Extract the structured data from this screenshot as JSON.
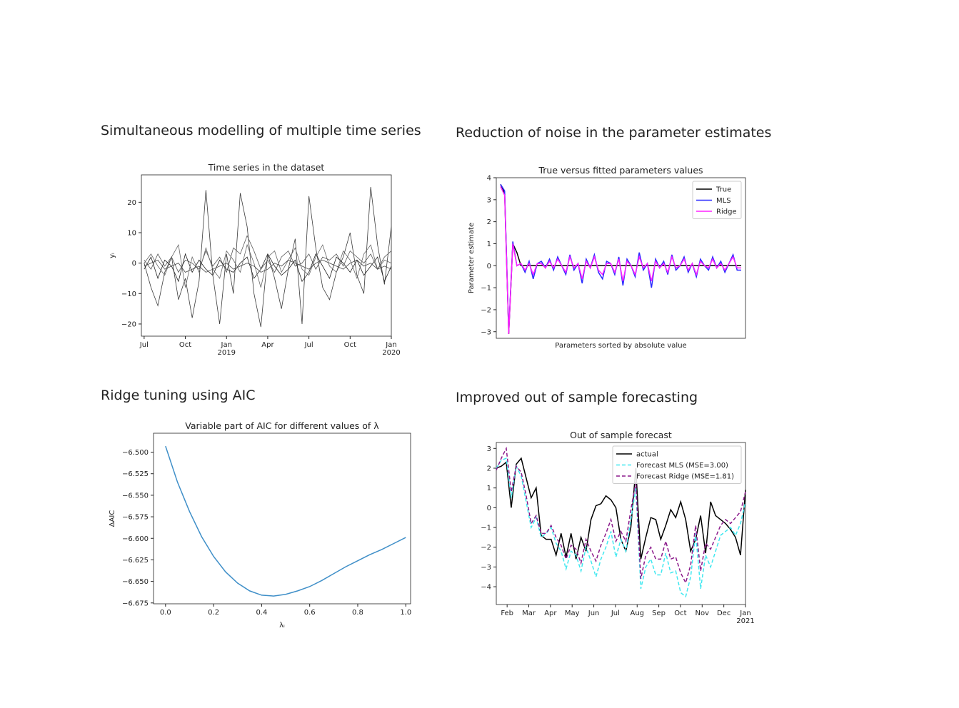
{
  "headings": [
    "Simultaneous modelling of multiple time series",
    "Reduction of noise in the parameter estimates",
    "Ridge tuning using AIC",
    "Improved out of sample forecasting"
  ],
  "chart_data": [
    {
      "type": "line",
      "title": "Time series in the dataset",
      "y_label": "yᵢ",
      "x": [
        0,
        0.5,
        1,
        1.5,
        2,
        2.5,
        3,
        3.5,
        4,
        4.5,
        5,
        5.5,
        6,
        6.5,
        7,
        7.5,
        8,
        8.5,
        9,
        9.5,
        10,
        10.5,
        11,
        11.5,
        12,
        12.5,
        13,
        13.5,
        14,
        14.5,
        15,
        15.5,
        16,
        16.5,
        17,
        17.5,
        18
      ],
      "xlim": [
        -0.2,
        18
      ],
      "xticks": [
        {
          "value": 0,
          "label": "Jul"
        },
        {
          "value": 3,
          "label": "Oct"
        },
        {
          "value": 6,
          "label": "Jan\n2019"
        },
        {
          "value": 9,
          "label": "Apr"
        },
        {
          "value": 12,
          "label": "Jul"
        },
        {
          "value": 15,
          "label": "Oct"
        },
        {
          "value": 18,
          "label": "Jan\n2020"
        }
      ],
      "ylim": [
        -24,
        29
      ],
      "yticks": [
        {
          "value": -20,
          "label": "−20"
        },
        {
          "value": -10,
          "label": "−10"
        },
        0,
        10,
        20
      ],
      "series": [
        {
          "color": "#3a3a3a",
          "values": [
            0,
            -8,
            -14,
            -3,
            2,
            -12,
            -5,
            -18,
            -6,
            24,
            -4,
            -20,
            3,
            -10,
            23,
            12,
            -10,
            -21,
            3,
            -5,
            -15,
            -2,
            8,
            -20,
            22,
            5,
            -8,
            -12,
            -3,
            2,
            10,
            -4,
            -10,
            25,
            6,
            -7,
            12
          ]
        },
        {
          "color": "#555555",
          "values": [
            1,
            -2,
            3,
            -1,
            2,
            -3,
            1,
            0,
            -2,
            4,
            -1,
            2,
            -3,
            5,
            3,
            9,
            4,
            -2,
            1,
            -3,
            2,
            4,
            -1,
            0,
            3,
            -2,
            2,
            1,
            3,
            -1,
            4,
            2,
            0,
            3,
            -2,
            2,
            4
          ]
        },
        {
          "color": "#222222",
          "values": [
            -2,
            2,
            -5,
            1,
            -1,
            -6,
            3,
            -3,
            1,
            -2,
            -4,
            1,
            -2,
            -3,
            0,
            2,
            -5,
            -2,
            3,
            -1,
            -4,
            -2,
            1,
            -6,
            -3,
            3,
            -1,
            -5,
            2,
            0,
            -3,
            1,
            -4,
            -1,
            2,
            -6,
            -1
          ]
        },
        {
          "color": "#666666",
          "values": [
            0,
            3,
            -1,
            -4,
            2,
            6,
            -8,
            2,
            -3,
            5,
            -2,
            -5,
            4,
            1,
            -3,
            6,
            0,
            -8,
            2,
            4,
            -3,
            1,
            5,
            -2,
            -4,
            2,
            6,
            -1,
            -3,
            4,
            1,
            -5,
            3,
            6,
            -2,
            1,
            0
          ]
        },
        {
          "color": "#444444",
          "values": [
            -1,
            0,
            1,
            -2,
            -1,
            0,
            -3,
            -2,
            -1,
            -3,
            -2,
            -1,
            0,
            -2,
            -1,
            0,
            -1,
            -3,
            -2,
            0,
            -1,
            1,
            0,
            -1,
            -2,
            0,
            1,
            0,
            -1,
            -2,
            0,
            1,
            -1,
            0,
            -2,
            -1,
            -2
          ]
        }
      ]
    },
    {
      "type": "line",
      "title": "True versus fitted parameters values",
      "x_label": "Parameters sorted by absolute value",
      "y_label": "Parameter estimate",
      "ylim": [
        -3.3,
        4
      ],
      "yticks": [
        {
          "value": -3,
          "label": "−3"
        },
        {
          "value": -2,
          "label": "−2"
        },
        {
          "value": -1,
          "label": "−1"
        },
        0,
        1,
        2,
        3,
        4
      ],
      "legend": "upper right",
      "series": [
        {
          "name": "True",
          "color": "#000000",
          "values": [
            3.7,
            3.3,
            -3.1,
            1.0,
            0.6,
            0,
            0,
            0,
            0,
            0,
            0,
            0,
            0,
            0,
            0,
            0,
            0,
            0,
            0,
            0,
            0,
            0,
            0,
            0,
            0,
            0,
            0,
            0,
            0,
            0,
            0,
            0,
            0,
            0,
            0,
            0,
            0,
            0,
            0,
            0,
            0,
            0,
            0,
            0,
            0,
            0,
            0,
            0,
            0,
            0,
            0,
            0,
            0,
            0,
            0,
            0,
            0,
            0,
            0,
            0
          ]
        },
        {
          "name": "MLS",
          "color": "#2a2aff",
          "values": [
            3.7,
            3.4,
            -3.0,
            1.1,
            0.0,
            0.1,
            -0.3,
            0.2,
            -0.6,
            0.1,
            0.2,
            -0.1,
            0.3,
            -0.2,
            0.4,
            0.0,
            -0.4,
            0.5,
            -0.2,
            0.1,
            -0.8,
            0.3,
            -0.1,
            0.5,
            -0.3,
            -0.6,
            0.2,
            0.1,
            -0.4,
            0.4,
            -0.9,
            0.3,
            0.0,
            -0.5,
            0.6,
            -0.2,
            0.1,
            -1.0,
            0.3,
            -0.1,
            0.2,
            -0.4,
            0.5,
            -0.2,
            0.0,
            0.4,
            -0.3,
            0.1,
            -0.5,
            0.3,
            0.0,
            -0.2,
            0.4,
            -0.1,
            0.2,
            -0.3,
            0.1,
            0.5,
            -0.2,
            -0.2
          ]
        },
        {
          "name": "Ridge",
          "color": "#ff22ff",
          "values": [
            3.6,
            3.2,
            -3.1,
            1.0,
            0.0,
            0.1,
            -0.2,
            0.1,
            -0.4,
            0.1,
            0.1,
            -0.1,
            0.2,
            -0.1,
            0.3,
            0.0,
            -0.3,
            0.4,
            -0.1,
            0.1,
            -0.6,
            0.2,
            -0.1,
            0.4,
            -0.2,
            -0.4,
            0.1,
            0.1,
            -0.3,
            0.3,
            -0.7,
            0.2,
            0.0,
            -0.4,
            0.4,
            -0.1,
            0.1,
            -0.7,
            0.2,
            -0.1,
            0.1,
            -0.3,
            0.4,
            -0.1,
            0.0,
            0.3,
            -0.2,
            0.1,
            -0.4,
            0.2,
            0.0,
            -0.1,
            0.3,
            -0.1,
            0.1,
            -0.2,
            0.1,
            0.4,
            -0.1,
            -0.1
          ]
        }
      ]
    },
    {
      "type": "line",
      "title": "Variable part of AIC for different values of λ",
      "x_label": "λᵢ",
      "y_label": "ΔAIC",
      "x": [
        0,
        0.05,
        0.1,
        0.15,
        0.2,
        0.25,
        0.3,
        0.35,
        0.4,
        0.45,
        0.5,
        0.55,
        0.6,
        0.65,
        0.7,
        0.75,
        0.8,
        0.85,
        0.9,
        0.95,
        1.0
      ],
      "xlim": [
        -0.05,
        1.02
      ],
      "xticks": [
        {
          "value": 0,
          "label": "0.0"
        },
        0.2,
        0.4,
        0.6,
        0.8,
        {
          "value": 1,
          "label": "1.0"
        }
      ],
      "ylim": [
        -6.676,
        -6.478
      ],
      "yticks": [
        {
          "value": -6.5,
          "label": "−6.500"
        },
        {
          "value": -6.525,
          "label": "−6.525"
        },
        {
          "value": -6.55,
          "label": "−6.550"
        },
        {
          "value": -6.575,
          "label": "−6.575"
        },
        {
          "value": -6.6,
          "label": "−6.600"
        },
        {
          "value": -6.625,
          "label": "−6.625"
        },
        {
          "value": -6.65,
          "label": "−6.650"
        },
        {
          "value": -6.675,
          "label": "−6.675"
        }
      ],
      "series": [
        {
          "color": "#3f8fc8",
          "values": [
            -6.493,
            -6.535,
            -6.569,
            -6.598,
            -6.621,
            -6.639,
            -6.652,
            -6.661,
            -6.666,
            -6.667,
            -6.665,
            -6.661,
            -6.656,
            -6.649,
            -6.641,
            -6.633,
            -6.626,
            -6.619,
            -6.613,
            -6.606,
            -6.599
          ]
        }
      ]
    },
    {
      "type": "line",
      "title": "Out of sample forecast",
      "x": [
        0.5,
        0.73,
        0.96,
        1.19,
        1.42,
        1.65,
        1.88,
        2.11,
        2.34,
        2.57,
        2.8,
        3.03,
        3.26,
        3.49,
        3.72,
        3.95,
        4.18,
        4.41,
        4.64,
        4.87,
        5.1,
        5.33,
        5.56,
        5.79,
        6.02,
        6.25,
        6.48,
        6.71,
        6.94,
        7.17,
        7.4,
        7.63,
        7.86,
        8.09,
        8.32,
        8.55,
        8.78,
        9.01,
        9.24,
        9.47,
        9.7,
        9.93,
        10.16,
        10.39,
        10.62,
        10.85,
        11.08,
        11.31,
        11.54,
        11.77,
        12.0
      ],
      "xlim": [
        0.5,
        12
      ],
      "xticks": [
        {
          "value": 1,
          "label": "Feb"
        },
        {
          "value": 2,
          "label": "Mar"
        },
        {
          "value": 3,
          "label": "Apr"
        },
        {
          "value": 4,
          "label": "May"
        },
        {
          "value": 5,
          "label": "Jun"
        },
        {
          "value": 6,
          "label": "Jul"
        },
        {
          "value": 7,
          "label": "Aug"
        },
        {
          "value": 8,
          "label": "Sep"
        },
        {
          "value": 9,
          "label": "Oct"
        },
        {
          "value": 10,
          "label": "Nov"
        },
        {
          "value": 11,
          "label": "Dec"
        },
        {
          "value": 12,
          "label": "Jan\n2021"
        }
      ],
      "ylim": [
        -4.9,
        3.3
      ],
      "yticks": [
        {
          "value": -4,
          "label": "−4"
        },
        {
          "value": -3,
          "label": "−3"
        },
        {
          "value": -2,
          "label": "−2"
        },
        {
          "value": -1,
          "label": "−1"
        },
        0,
        1,
        2,
        3
      ],
      "legend": "upper right",
      "series": [
        {
          "name": "actual",
          "color": "#000000",
          "dash": "solid",
          "values": [
            2.0,
            2.1,
            2.3,
            0.0,
            2.2,
            2.5,
            1.5,
            0.5,
            1.0,
            -1.4,
            -1.6,
            -1.6,
            -2.4,
            -1.3,
            -2.5,
            -1.3,
            -2.6,
            -1.5,
            -2.2,
            -0.6,
            0.1,
            0.2,
            0.6,
            0.4,
            0.0,
            -1.6,
            -2.2,
            -1.0,
            2.0,
            -2.6,
            -1.5,
            -0.5,
            -0.6,
            -1.6,
            -0.9,
            -0.1,
            -0.5,
            0.3,
            -0.6,
            -2.2,
            -1.6,
            -0.4,
            -2.3,
            0.3,
            -0.4,
            -0.6,
            -0.8,
            -1.1,
            -1.5,
            -2.4,
            0.9
          ]
        },
        {
          "name": "Forecast MLS (MSE=3.00)",
          "color": "#40e8f0",
          "dash": "dashed",
          "values": [
            2.0,
            2.4,
            2.5,
            0.5,
            2.1,
            1.6,
            0.3,
            -1.0,
            -0.5,
            -1.5,
            -1.3,
            -1.0,
            -1.8,
            -2.2,
            -3.1,
            -2.2,
            -2.4,
            -3.2,
            -2.0,
            -2.7,
            -3.5,
            -2.6,
            -2.0,
            -1.2,
            -2.5,
            -1.6,
            -2.2,
            -0.6,
            1.0,
            -4.1,
            -3.0,
            -2.6,
            -3.4,
            -3.4,
            -2.3,
            -3.3,
            -3.2,
            -4.3,
            -4.5,
            -3.5,
            -1.3,
            -4.1,
            -2.4,
            -3.0,
            -2.2,
            -1.4,
            -1.2,
            -1.0,
            -1.4,
            -0.8,
            0.3
          ]
        },
        {
          "name": "Forecast Ridge (MSE=1.81)",
          "color": "#8b1a8b",
          "dash": "dashed",
          "values": [
            1.9,
            2.5,
            3.0,
            0.8,
            2.1,
            1.8,
            0.6,
            -0.8,
            -0.4,
            -1.3,
            -1.3,
            -0.9,
            -1.5,
            -1.9,
            -2.6,
            -1.9,
            -2.1,
            -2.8,
            -1.6,
            -2.2,
            -2.7,
            -1.9,
            -1.3,
            -0.6,
            -1.7,
            -1.2,
            -1.7,
            -0.1,
            1.3,
            -3.6,
            -2.4,
            -2.0,
            -2.6,
            -2.6,
            -1.7,
            -2.6,
            -2.5,
            -3.3,
            -3.8,
            -2.9,
            -0.9,
            -3.2,
            -1.8,
            -2.1,
            -1.5,
            -0.9,
            -0.6,
            -0.8,
            -0.5,
            -0.2,
            0.8
          ]
        }
      ]
    }
  ]
}
